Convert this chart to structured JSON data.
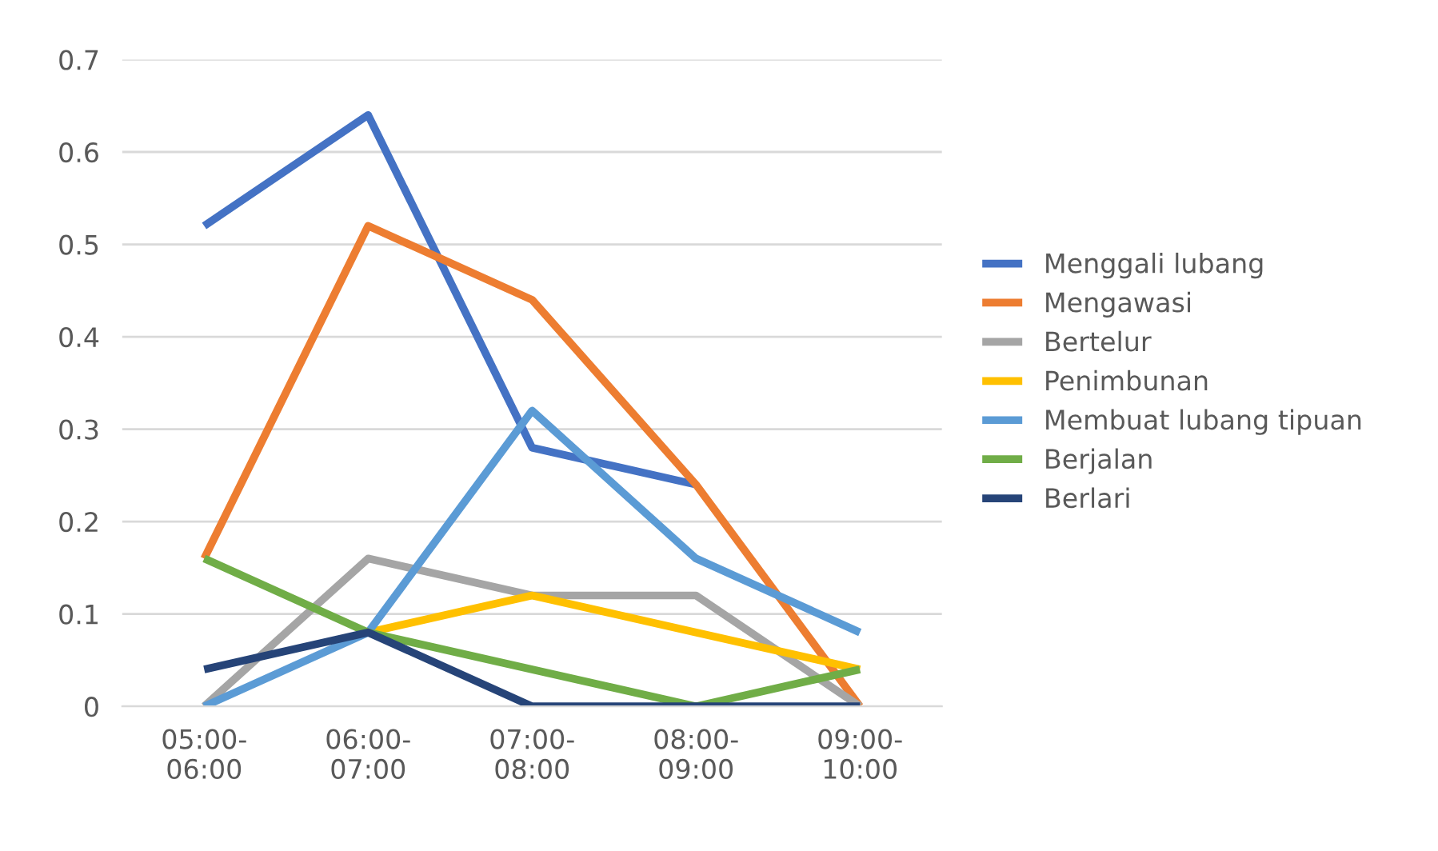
{
  "chart_data": {
    "type": "line",
    "categories": [
      "05:00-\n06:00",
      "06:00-\n07:00",
      "07:00-\n08:00",
      "08:00-\n09:00",
      "09:00-\n10:00"
    ],
    "ylim": [
      0,
      0.7
    ],
    "yticks": [
      0,
      0.1,
      0.2,
      0.3,
      0.4,
      0.5,
      0.6,
      0.7
    ],
    "grid": "y",
    "legend": "right",
    "marker": "none",
    "line_style": "solid",
    "series": [
      {
        "name": "Menggali lubang",
        "color": "#4472c4",
        "values": [
          0.52,
          0.64,
          0.28,
          0.24,
          null
        ]
      },
      {
        "name": "Mengawasi",
        "color": "#ed7d31",
        "values": [
          0.16,
          0.52,
          0.44,
          0.24,
          0
        ]
      },
      {
        "name": "Bertelur",
        "color": "#a5a5a5",
        "values": [
          0,
          0.16,
          0.12,
          0.12,
          0
        ]
      },
      {
        "name": "Penimbunan",
        "color": "#ffc000",
        "values": [
          null,
          0.08,
          0.12,
          0.08,
          0.04
        ]
      },
      {
        "name": "Membuat lubang tipuan",
        "color": "#5b9bd5",
        "values": [
          0,
          0.08,
          0.32,
          0.16,
          0.08
        ]
      },
      {
        "name": "Berjalan",
        "color": "#70ad47",
        "values": [
          0.16,
          0.08,
          0.04,
          0,
          0.04
        ]
      },
      {
        "name": "Berlari",
        "color": "#264478",
        "values": [
          0.04,
          0.08,
          0,
          0,
          0
        ]
      }
    ]
  }
}
